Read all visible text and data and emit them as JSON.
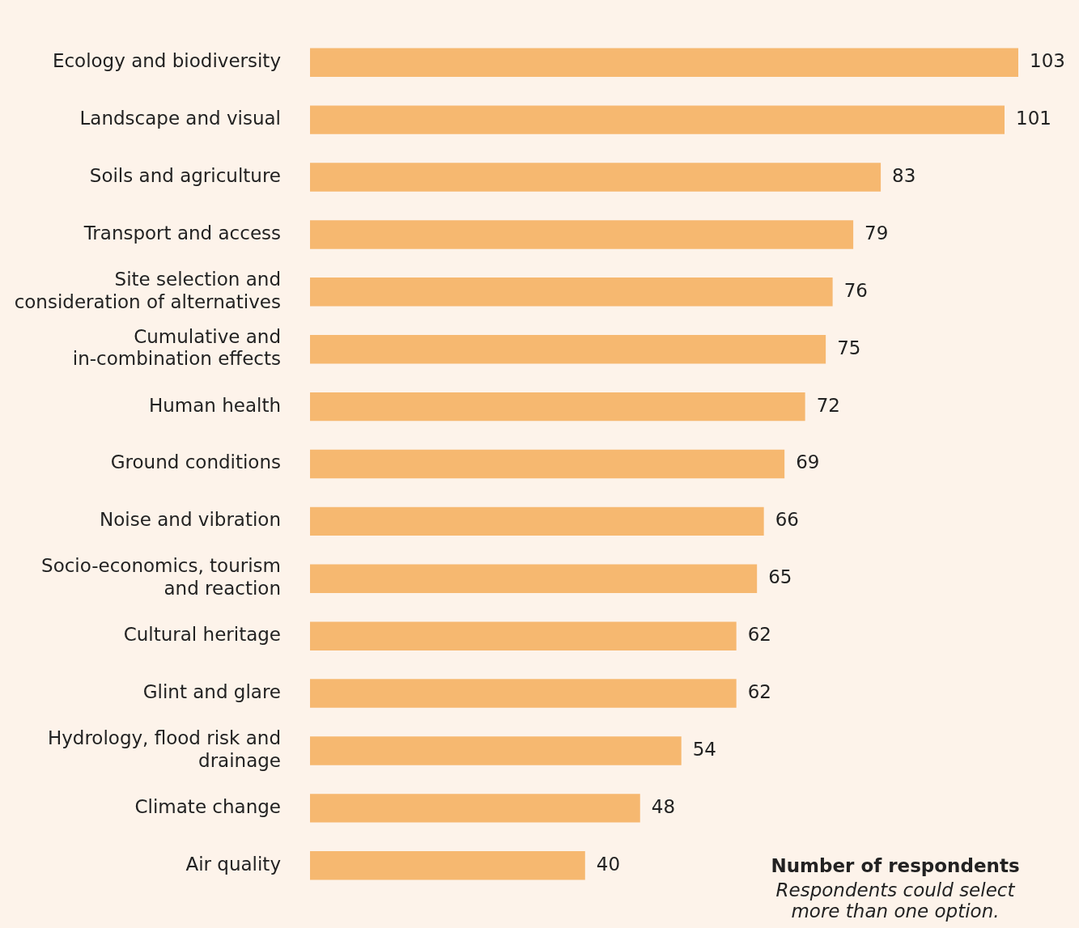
{
  "chart_data": {
    "type": "bar",
    "orientation": "horizontal",
    "categories": [
      "Ecology and biodiversity",
      "Landscape and visual",
      "Soils and agriculture",
      "Transport and access",
      "Site selection and consideration of alternatives",
      "Cumulative and in-combination effects",
      "Human health",
      "Ground conditions",
      "Noise and vibration",
      "Socio-economics, tourism and reaction",
      "Cultural heritage",
      "Glint and glare",
      "Hydrology, flood risk and drainage",
      "Climate change",
      "Air quality"
    ],
    "values": [
      103,
      101,
      83,
      79,
      76,
      75,
      72,
      69,
      66,
      65,
      62,
      62,
      54,
      48,
      40
    ],
    "color": "#f6b870",
    "xlim": [
      0,
      103
    ],
    "data_labels": true,
    "tick_labels": "y",
    "grid": false,
    "legend": false,
    "annotations": [
      "Number of respondents",
      "Respondents could select more than one option."
    ]
  }
}
